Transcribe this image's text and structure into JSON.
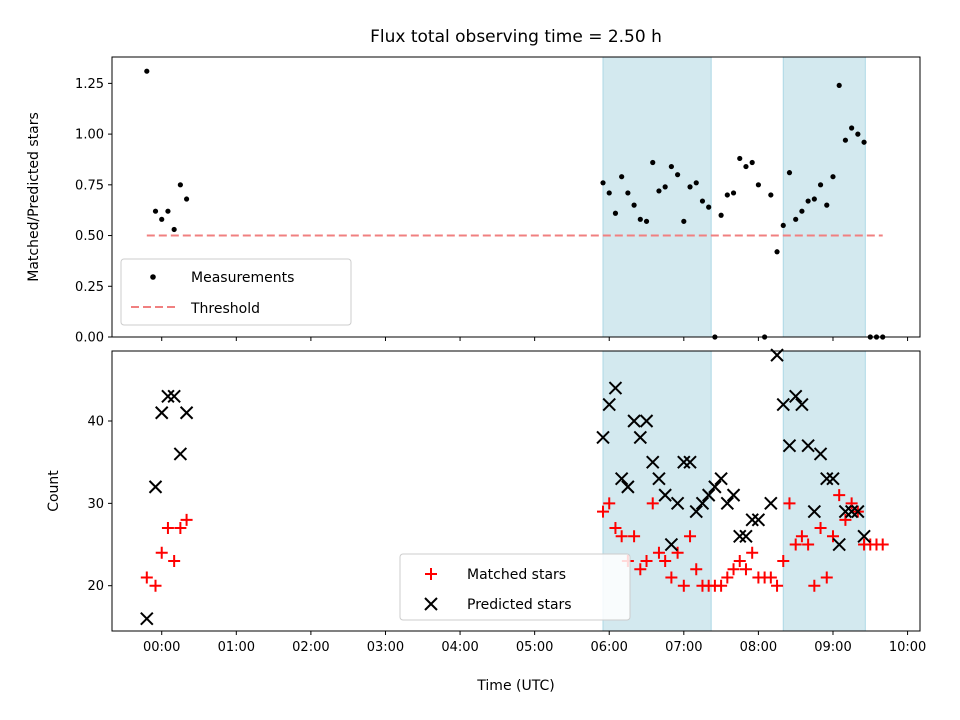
{
  "chart_data": [
    {
      "type": "scatter",
      "title": "Flux total observing time = 2.50 h",
      "xlabel": "",
      "ylabel": "Matched/Predicted stars",
      "xlim": [
        "23:20",
        "10:10"
      ],
      "ylim": [
        0,
        1.38
      ],
      "yticks": [
        "0.00",
        "0.25",
        "0.50",
        "0.75",
        "1.00",
        "1.25"
      ],
      "shaded_regions": [
        [
          "05:55",
          "07:22"
        ],
        [
          "08:20",
          "09:26"
        ]
      ],
      "shade_color": "#d3e9ef",
      "series": [
        {
          "name": "Measurements",
          "marker": "dot",
          "color": "#000000",
          "points": [
            [
              "23:48",
              1.31
            ],
            [
              "23:55",
              0.62
            ],
            [
              "00:00",
              0.58
            ],
            [
              "00:05",
              0.62
            ],
            [
              "00:10",
              0.53
            ],
            [
              "00:15",
              0.75
            ],
            [
              "00:20",
              0.68
            ],
            [
              "05:55",
              0.76
            ],
            [
              "06:00",
              0.71
            ],
            [
              "06:05",
              0.61
            ],
            [
              "06:10",
              0.79
            ],
            [
              "06:15",
              0.71
            ],
            [
              "06:20",
              0.65
            ],
            [
              "06:25",
              0.58
            ],
            [
              "06:30",
              0.57
            ],
            [
              "06:35",
              0.86
            ],
            [
              "06:40",
              0.72
            ],
            [
              "06:45",
              0.74
            ],
            [
              "06:50",
              0.84
            ],
            [
              "06:55",
              0.8
            ],
            [
              "07:00",
              0.57
            ],
            [
              "07:05",
              0.74
            ],
            [
              "07:10",
              0.76
            ],
            [
              "07:15",
              0.67
            ],
            [
              "07:20",
              0.64
            ],
            [
              "07:25",
              0.0
            ],
            [
              "07:30",
              0.6
            ],
            [
              "07:35",
              0.7
            ],
            [
              "07:40",
              0.71
            ],
            [
              "07:45",
              0.88
            ],
            [
              "07:50",
              0.84
            ],
            [
              "07:55",
              0.86
            ],
            [
              "08:00",
              0.75
            ],
            [
              "08:05",
              0.0
            ],
            [
              "08:10",
              0.7
            ],
            [
              "08:15",
              0.42
            ],
            [
              "08:20",
              0.55
            ],
            [
              "08:25",
              0.81
            ],
            [
              "08:30",
              0.58
            ],
            [
              "08:35",
              0.62
            ],
            [
              "08:40",
              0.67
            ],
            [
              "08:45",
              0.68
            ],
            [
              "08:50",
              0.75
            ],
            [
              "08:55",
              0.65
            ],
            [
              "09:00",
              0.79
            ],
            [
              "09:05",
              1.24
            ],
            [
              "09:10",
              0.97
            ],
            [
              "09:15",
              1.03
            ],
            [
              "09:20",
              1.0
            ],
            [
              "09:25",
              0.96
            ],
            [
              "09:30",
              0.0
            ],
            [
              "09:35",
              0.0
            ],
            [
              "09:40",
              0.0
            ]
          ]
        },
        {
          "name": "Threshold",
          "marker": "dashed-line",
          "color": "#f08080",
          "points": [
            [
              "23:48",
              0.5
            ],
            [
              "09:40",
              0.5
            ]
          ]
        }
      ],
      "legend": "lower-left"
    },
    {
      "type": "scatter",
      "title": "",
      "xlabel": "Time (UTC)",
      "ylabel": "Count",
      "xlim": [
        "23:20",
        "10:10"
      ],
      "ylim": [
        14.5,
        48.5
      ],
      "yticks": [
        "20",
        "30",
        "40"
      ],
      "xticks": [
        "00:00",
        "01:00",
        "02:00",
        "03:00",
        "04:00",
        "05:00",
        "06:00",
        "07:00",
        "08:00",
        "09:00",
        "10:00"
      ],
      "shaded_regions": [
        [
          "05:55",
          "07:22"
        ],
        [
          "08:20",
          "09:26"
        ]
      ],
      "shade_color": "#d3e9ef",
      "series": [
        {
          "name": "Matched stars",
          "marker": "plus",
          "color": "#ff0000",
          "points": [
            [
              "23:48",
              21
            ],
            [
              "23:55",
              20
            ],
            [
              "00:00",
              24
            ],
            [
              "00:05",
              27
            ],
            [
              "00:10",
              23
            ],
            [
              "00:15",
              27
            ],
            [
              "00:20",
              28
            ],
            [
              "05:55",
              29
            ],
            [
              "06:00",
              30
            ],
            [
              "06:05",
              27
            ],
            [
              "06:10",
              26
            ],
            [
              "06:15",
              23
            ],
            [
              "06:20",
              26
            ],
            [
              "06:25",
              22
            ],
            [
              "06:30",
              23
            ],
            [
              "06:35",
              30
            ],
            [
              "06:40",
              24
            ],
            [
              "06:45",
              23
            ],
            [
              "06:50",
              21
            ],
            [
              "06:55",
              24
            ],
            [
              "07:00",
              20
            ],
            [
              "07:05",
              26
            ],
            [
              "07:10",
              22
            ],
            [
              "07:15",
              20
            ],
            [
              "07:20",
              20
            ],
            [
              "07:25",
              20
            ],
            [
              "07:30",
              20
            ],
            [
              "07:35",
              21
            ],
            [
              "07:40",
              22
            ],
            [
              "07:45",
              23
            ],
            [
              "07:50",
              22
            ],
            [
              "07:55",
              24
            ],
            [
              "08:00",
              21
            ],
            [
              "08:05",
              21
            ],
            [
              "08:10",
              21
            ],
            [
              "08:15",
              20
            ],
            [
              "08:20",
              23
            ],
            [
              "08:25",
              30
            ],
            [
              "08:30",
              25
            ],
            [
              "08:35",
              26
            ],
            [
              "08:40",
              25
            ],
            [
              "08:45",
              20
            ],
            [
              "08:50",
              27
            ],
            [
              "08:55",
              21
            ],
            [
              "09:00",
              26
            ],
            [
              "09:05",
              31
            ],
            [
              "09:10",
              28
            ],
            [
              "09:15",
              30
            ],
            [
              "09:20",
              29
            ],
            [
              "09:25",
              25
            ],
            [
              "09:30",
              25
            ],
            [
              "09:35",
              25
            ],
            [
              "09:40",
              25
            ]
          ]
        },
        {
          "name": "Predicted stars",
          "marker": "x",
          "color": "#000000",
          "points": [
            [
              "23:48",
              16
            ],
            [
              "23:55",
              32
            ],
            [
              "00:00",
              41
            ],
            [
              "00:05",
              43
            ],
            [
              "00:10",
              43
            ],
            [
              "00:15",
              36
            ],
            [
              "00:20",
              41
            ],
            [
              "05:55",
              38
            ],
            [
              "06:00",
              42
            ],
            [
              "06:05",
              44
            ],
            [
              "06:10",
              33
            ],
            [
              "06:15",
              32
            ],
            [
              "06:20",
              40
            ],
            [
              "06:25",
              38
            ],
            [
              "06:30",
              40
            ],
            [
              "06:35",
              35
            ],
            [
              "06:40",
              33
            ],
            [
              "06:45",
              31
            ],
            [
              "06:50",
              25
            ],
            [
              "06:55",
              30
            ],
            [
              "07:00",
              35
            ],
            [
              "07:05",
              35
            ],
            [
              "07:10",
              29
            ],
            [
              "07:15",
              30
            ],
            [
              "07:20",
              31
            ],
            [
              "07:25",
              32
            ],
            [
              "07:30",
              33
            ],
            [
              "07:35",
              30
            ],
            [
              "07:40",
              31
            ],
            [
              "07:45",
              26
            ],
            [
              "07:50",
              26
            ],
            [
              "07:55",
              28
            ],
            [
              "08:00",
              28
            ],
            [
              "08:10",
              30
            ],
            [
              "08:15",
              48
            ],
            [
              "08:20",
              42
            ],
            [
              "08:25",
              37
            ],
            [
              "08:30",
              43
            ],
            [
              "08:35",
              42
            ],
            [
              "08:40",
              37
            ],
            [
              "08:45",
              29
            ],
            [
              "08:50",
              36
            ],
            [
              "08:55",
              33
            ],
            [
              "09:00",
              33
            ],
            [
              "09:05",
              25
            ],
            [
              "09:10",
              29
            ],
            [
              "09:15",
              29
            ],
            [
              "09:20",
              29
            ],
            [
              "09:25",
              26
            ]
          ]
        }
      ],
      "legend": "lower-center"
    }
  ]
}
